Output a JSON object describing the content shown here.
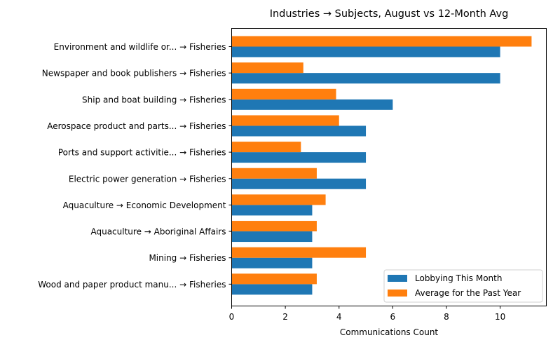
{
  "chart_data": {
    "type": "bar",
    "orientation": "horizontal",
    "title": "Industries → Subjects, August vs 12-Month Avg",
    "xlabel": "Communications Count",
    "ylabel": "",
    "xlim": [
      0,
      11.72
    ],
    "xticks": [
      0,
      2,
      4,
      6,
      8,
      10
    ],
    "grid": false,
    "legend_position": "lower-right",
    "categories": [
      "Environment and wildlife or... → Fisheries",
      "Newspaper and book publishers → Fisheries",
      "Ship and boat building → Fisheries",
      "Aerospace product and parts... → Fisheries",
      "Ports and support activitie... → Fisheries",
      "Electric power generation → Fisheries",
      "Aquaculture → Economic Development",
      "Aquaculture → Aboriginal Affairs",
      "Mining → Fisheries",
      "Wood and paper product manu... → Fisheries"
    ],
    "series": [
      {
        "name": "Lobbying This Month",
        "color": "#1f77b4",
        "values": [
          10,
          10,
          6,
          5,
          5,
          5,
          3,
          3,
          3,
          3
        ]
      },
      {
        "name": "Average for the Past Year",
        "color": "#ff7f0e",
        "values": [
          11.17,
          2.67,
          3.89,
          4.0,
          2.58,
          3.17,
          3.5,
          3.17,
          5.0,
          3.17
        ]
      }
    ]
  }
}
